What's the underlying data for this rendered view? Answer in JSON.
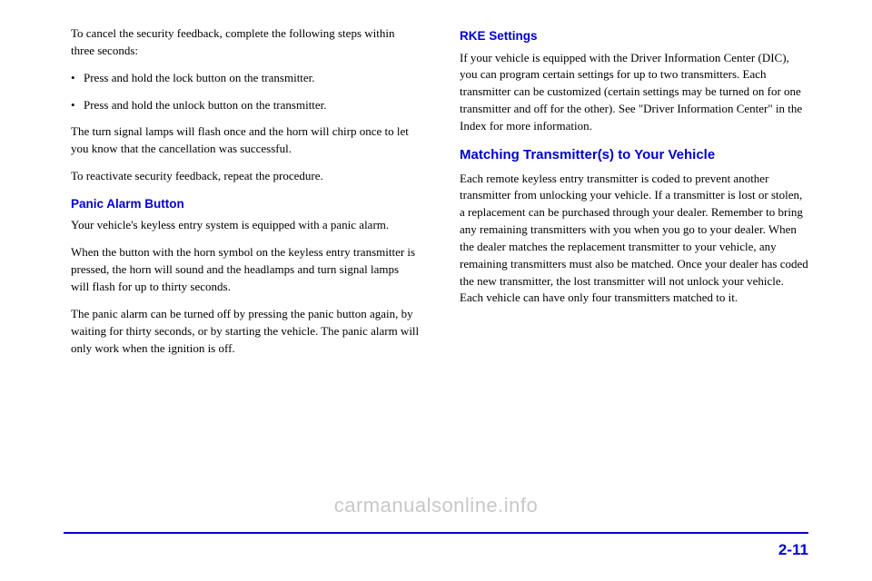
{
  "colors": {
    "accent": "#0000d0",
    "text": "#000000",
    "watermark": "#c8c8c8",
    "bg": "#ffffff"
  },
  "left": {
    "p1": "To cancel the security feedback, complete the following steps within three seconds:",
    "b1": "Press and hold the lock button on the transmitter.",
    "b2": "Press and hold the unlock button on the transmitter.",
    "p2": "The turn signal lamps will flash once and the horn will chirp once to let you know that the cancellation was successful.",
    "p3": "To reactivate security feedback, repeat the procedure.",
    "h_panic": "Panic Alarm Button",
    "p4": "Your vehicle's keyless entry system is equipped with a panic alarm.",
    "p5": "When the button with the horn symbol on the keyless entry transmitter is pressed, the horn will sound and the headlamps and turn signal lamps will flash for up to thirty seconds.",
    "p6": "The panic alarm can be turned off by pressing the panic button again, by waiting for thirty seconds, or by starting the vehicle. The panic alarm will only work when the ignition is off."
  },
  "right": {
    "h_rke": "RKE Settings",
    "p1": "If your vehicle is equipped with the Driver Information Center (DIC), you can program certain settings for up to two transmitters. Each transmitter can be customized (certain settings may be turned on for one transmitter and off for the other). See \"Driver Information Center\" in the Index for more information.",
    "h_match": "Matching Transmitter(s) to Your Vehicle",
    "p2": "Each remote keyless entry transmitter is coded to prevent another transmitter from unlocking your vehicle. If a transmitter is lost or stolen, a replacement can be purchased through your dealer. Remember to bring any remaining transmitters with you when you go to your dealer. When the dealer matches the replacement transmitter to your vehicle, any remaining transmitters must also be matched. Once your dealer has coded the new transmitter, the lost transmitter will not unlock your vehicle. Each vehicle can have only four transmitters matched to it."
  },
  "page_number": "2-11",
  "watermark": "carmanualsonline.info"
}
